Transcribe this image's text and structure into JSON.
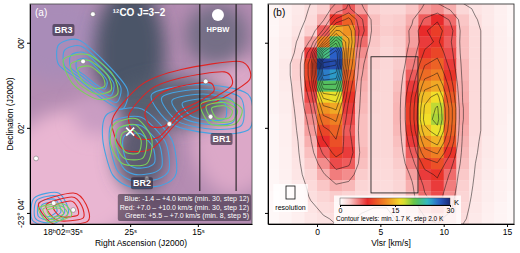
{
  "chart_data": [
    {
      "type": "contour_map",
      "panel": "(a)",
      "title": "¹²CO J=3–2",
      "xlabel": "Right Ascension (J2000)",
      "ylabel": "Declination (J2000)",
      "xlim": [
        39.8,
        7.0
      ],
      "xticks": [
        {
          "value": 35,
          "label": "18ʰ02ᵐ35ˢ"
        },
        {
          "value": 25,
          "label": "25ˢ"
        },
        {
          "value": 15,
          "label": "15ˢ"
        }
      ],
      "ylim": [
        4.26,
        -0.91
      ],
      "yticks": [
        {
          "value": 0,
          "label": "00'"
        },
        {
          "value": 2,
          "label": "02'"
        },
        {
          "value": 4,
          "label": "-23° 04'"
        }
      ],
      "series": [
        {
          "name": "Blue: -1.4 – +4.0 km/s (min. 30, step 12)",
          "color": "#45a3e3",
          "levels": 4,
          "regions": [
            {
              "ra": [
                35.58,
                32.68,
                29.06,
                25.43,
                26.16,
                29.06,
                32.68,
                35.58
              ],
              "dec": [
                0.05,
                -0.07,
                0.4,
                1.09,
                1.56,
                1.33,
                0.86,
                0.51
              ]
            },
            {
              "ra": [
                28.33,
                23.26,
                18.91,
                18.19,
                20.36,
                24.71,
                27.61,
                29.06
              ],
              "dec": [
                1.67,
                1.56,
                2.26,
                3.07,
                3.35,
                3.4,
                3.1,
                2.26
              ]
            },
            {
              "ra": [
                21.81,
                14.57,
                7.61,
                7.32,
                12.39,
                18.91
              ],
              "dec": [
                1.21,
                0.98,
                1.21,
                2.02,
                2.14,
                1.91
              ]
            },
            {
              "ra": [
                39.2,
                35.58,
                34.13,
                37.03,
                39.49
              ],
              "dec": [
                3.65,
                3.53,
                4.0,
                4.3,
                4.16
              ]
            }
          ]
        },
        {
          "name": "Red: +7.0 – +10.0 km/s (min. 30, step 12)",
          "color": "#e02424",
          "levels": 3,
          "regions": [
            {
              "ra": [
                27.61,
                23.26,
                17.46,
                8.77,
                7.32,
                11.67,
                17.46,
                21.81,
                26.16
              ],
              "dec": [
                1.79,
                0.98,
                0.63,
                0.44,
                0.86,
                1.33,
                1.79,
                2.49,
                2.49
              ]
            },
            {
              "ra": [
                38.48,
                33.41,
                31.5,
                31.3,
                36.3
              ],
              "dec": [
                3.77,
                3.53,
                3.8,
                4.2,
                4.26
              ]
            }
          ]
        },
        {
          "name": "Green: +5.5 – +7.0 km/s (min. 8, step 5)",
          "color": "#7ad35a",
          "levels": 3,
          "regions": [
            {
              "ra": [
                34.86,
                31.23,
                27.61,
                26.88,
                29.78,
                33.41
              ],
              "dec": [
                0.4,
                0.28,
                0.74,
                1.21,
                1.33,
                0.98
              ]
            },
            {
              "ra": [
                27.32,
                23.99,
                21.81,
                22.54,
                26.16,
                27.9
              ],
              "dec": [
                1.91,
                1.79,
                2.26,
                2.84,
                2.84,
                2.37
              ]
            },
            {
              "ra": [
                14.57,
                10.94,
                8.48,
                9.49,
                13.12
              ],
              "dec": [
                1.44,
                1.33,
                1.56,
                1.91,
                1.91
              ]
            },
            {
              "ra": [
                38.48,
                34.86,
                33.7,
                37.03
              ],
              "dec": [
                3.88,
                3.79,
                4.07,
                4.21
              ]
            }
          ]
        }
      ],
      "annotations": [
        {
          "text": "BR3",
          "ra": 34.86,
          "dec": -0.3
        },
        {
          "text": "BR2",
          "ra": 23.26,
          "dec": 3.3
        },
        {
          "text": "BR1",
          "ra": 11.5,
          "dec": 2.26
        }
      ],
      "stars": {
        "ra": [
          31.96,
          30.51,
          13.84,
          13.12,
          19.2,
          22.54,
          36.3,
          33.41,
          38.91
        ],
        "dec": [
          0.44,
          -0.67,
          0.91,
          1.74,
          1.91,
          3.2,
          3.77,
          3.93,
          2.72
        ]
      },
      "cross": {
        "ra": 25.0,
        "dec": 2.09
      },
      "beam_label": "HPBW",
      "strip_ra": [
        14.71,
        9.35
      ]
    },
    {
      "type": "heatmap",
      "panel": "(b)",
      "xlabel": "Vlsr [km/s]",
      "xlim": [
        -3.87,
        15.55
      ],
      "xticks": [
        0,
        5,
        10,
        15
      ],
      "ylim": [
        4.26,
        -0.91
      ],
      "yticks": [
        0,
        2,
        4
      ],
      "tick_labels": "x",
      "x": [
        -3.5,
        -2.5,
        -1.5,
        -0.5,
        0.5,
        1.5,
        2.5,
        3.5,
        4.5,
        5.5,
        6.5,
        7.5,
        8.5,
        9.5,
        10.5,
        11.5,
        12.5,
        13.5,
        14.5,
        15.5
      ],
      "y": [
        -0.8,
        -0.54,
        -0.28,
        -0.02,
        0.24,
        0.5,
        0.76,
        1.02,
        1.28,
        1.54,
        1.8,
        2.06,
        2.32,
        2.58,
        2.84,
        3.1,
        3.36,
        3.62,
        3.88,
        4.14
      ],
      "cells": [
        [
          0.5,
          0.8,
          1.2,
          1.8,
          2.5,
          4.5,
          6.0,
          4.0,
          2.5,
          2.2,
          2.2,
          2.8,
          4.0,
          4.5,
          3.5,
          2.2,
          1.5,
          1.2,
          0.8,
          0.5
        ],
        [
          0.5,
          0.8,
          1.3,
          2.0,
          3.5,
          8.0,
          10.5,
          6.0,
          3.0,
          2.5,
          2.6,
          3.5,
          6.0,
          7.5,
          5.5,
          2.8,
          1.8,
          1.2,
          0.8,
          0.5
        ],
        [
          0.5,
          0.9,
          1.5,
          2.5,
          6.0,
          14.0,
          13.0,
          6.5,
          3.0,
          2.6,
          2.8,
          4.0,
          7.5,
          8.5,
          6.5,
          3.0,
          2.0,
          1.3,
          0.9,
          0.5
        ],
        [
          0.6,
          1.0,
          1.8,
          4.0,
          12.0,
          21.0,
          14.0,
          5.5,
          2.8,
          2.4,
          2.6,
          4.0,
          7.0,
          8.0,
          6.0,
          3.0,
          2.0,
          1.3,
          0.9,
          0.6
        ],
        [
          0.6,
          1.0,
          2.0,
          7.0,
          22.0,
          27.0,
          13.0,
          4.5,
          2.6,
          2.2,
          2.5,
          4.5,
          8.0,
          9.0,
          6.5,
          3.0,
          2.0,
          1.3,
          0.9,
          0.6
        ],
        [
          0.6,
          1.2,
          2.5,
          9.0,
          28.5,
          28.0,
          12.0,
          4.0,
          2.5,
          2.2,
          2.6,
          5.0,
          9.5,
          10.5,
          7.0,
          3.2,
          2.0,
          1.3,
          0.9,
          0.6
        ],
        [
          0.6,
          1.2,
          2.5,
          9.0,
          26.0,
          25.0,
          10.5,
          3.8,
          2.4,
          2.2,
          2.8,
          6.0,
          11.0,
          12.0,
          8.0,
          3.3,
          2.0,
          1.3,
          0.9,
          0.6
        ],
        [
          0.6,
          1.1,
          2.3,
          8.0,
          21.0,
          21.0,
          9.0,
          3.5,
          2.4,
          2.2,
          3.0,
          7.0,
          13.0,
          14.0,
          9.0,
          3.5,
          2.0,
          1.3,
          0.9,
          0.6
        ],
        [
          0.6,
          1.0,
          2.2,
          6.5,
          16.0,
          17.0,
          8.0,
          3.3,
          2.3,
          2.2,
          3.2,
          8.0,
          15.0,
          16.5,
          10.0,
          3.6,
          2.0,
          1.3,
          0.9,
          0.6
        ],
        [
          0.6,
          1.0,
          2.0,
          5.5,
          13.0,
          14.0,
          7.0,
          3.2,
          2.3,
          2.2,
          3.3,
          8.5,
          16.0,
          18.0,
          11.0,
          3.8,
          2.0,
          1.3,
          0.9,
          0.6
        ],
        [
          0.5,
          0.9,
          1.9,
          4.5,
          11.0,
          12.0,
          6.5,
          3.0,
          2.2,
          2.2,
          3.3,
          8.5,
          16.5,
          18.5,
          11.0,
          3.8,
          2.0,
          1.3,
          0.9,
          0.5
        ],
        [
          0.5,
          0.9,
          1.8,
          4.0,
          9.0,
          10.5,
          6.0,
          3.0,
          2.2,
          2.2,
          3.2,
          8.0,
          15.0,
          17.0,
          10.5,
          3.6,
          2.0,
          1.3,
          0.8,
          0.5
        ],
        [
          0.5,
          0.9,
          1.7,
          3.5,
          7.5,
          9.5,
          6.5,
          3.0,
          2.2,
          2.2,
          3.0,
          7.0,
          13.0,
          14.5,
          9.5,
          3.4,
          1.9,
          1.2,
          0.8,
          0.5
        ],
        [
          0.5,
          0.8,
          1.6,
          3.0,
          6.0,
          8.5,
          7.0,
          3.2,
          2.2,
          2.2,
          2.8,
          6.0,
          11.0,
          12.0,
          8.0,
          3.2,
          1.8,
          1.2,
          0.8,
          0.5
        ],
        [
          0.5,
          0.8,
          1.5,
          2.6,
          4.5,
          6.5,
          6.0,
          3.0,
          2.1,
          2.1,
          2.6,
          5.0,
          8.5,
          9.5,
          6.5,
          3.0,
          1.7,
          1.1,
          0.8,
          0.5
        ],
        [
          0.5,
          0.8,
          1.4,
          2.3,
          3.5,
          5.0,
          4.5,
          2.6,
          2.0,
          2.0,
          2.4,
          4.0,
          7.0,
          8.0,
          5.5,
          2.7,
          1.6,
          1.1,
          0.7,
          0.5
        ],
        [
          0.5,
          0.7,
          1.2,
          2.0,
          2.8,
          3.5,
          3.2,
          2.3,
          1.9,
          1.9,
          2.3,
          3.5,
          6.0,
          7.0,
          5.0,
          2.5,
          1.5,
          1.0,
          0.7,
          0.5
        ],
        [
          0.4,
          0.7,
          1.1,
          1.8,
          2.3,
          2.6,
          2.4,
          2.0,
          1.8,
          1.8,
          2.2,
          3.2,
          5.5,
          6.5,
          4.5,
          2.3,
          1.4,
          1.0,
          0.7,
          0.4
        ],
        [
          0.4,
          0.6,
          1.0,
          1.5,
          1.9,
          2.1,
          2.0,
          1.8,
          1.7,
          1.7,
          2.0,
          2.8,
          4.5,
          5.5,
          4.0,
          2.1,
          1.3,
          0.9,
          0.6,
          0.4
        ],
        [
          0.4,
          0.6,
          0.9,
          1.3,
          1.6,
          1.8,
          1.8,
          1.6,
          1.5,
          1.5,
          1.8,
          2.4,
          3.5,
          4.0,
          3.2,
          1.9,
          1.2,
          0.8,
          0.6,
          0.4
        ]
      ],
      "colorbar": {
        "range": [
          0,
          30
        ],
        "ticks": [
          0,
          15,
          30
        ],
        "label": "K"
      },
      "contour_min": 1.7,
      "contour_step": 2.0,
      "contour_text": "Contour levels: min. 1.7 K, step 2.0 K",
      "resolution_label": "resolution",
      "box": {
        "x": [
          4.26,
          7.97
        ],
        "y": [
          0.33,
          3.53
        ]
      }
    }
  ]
}
